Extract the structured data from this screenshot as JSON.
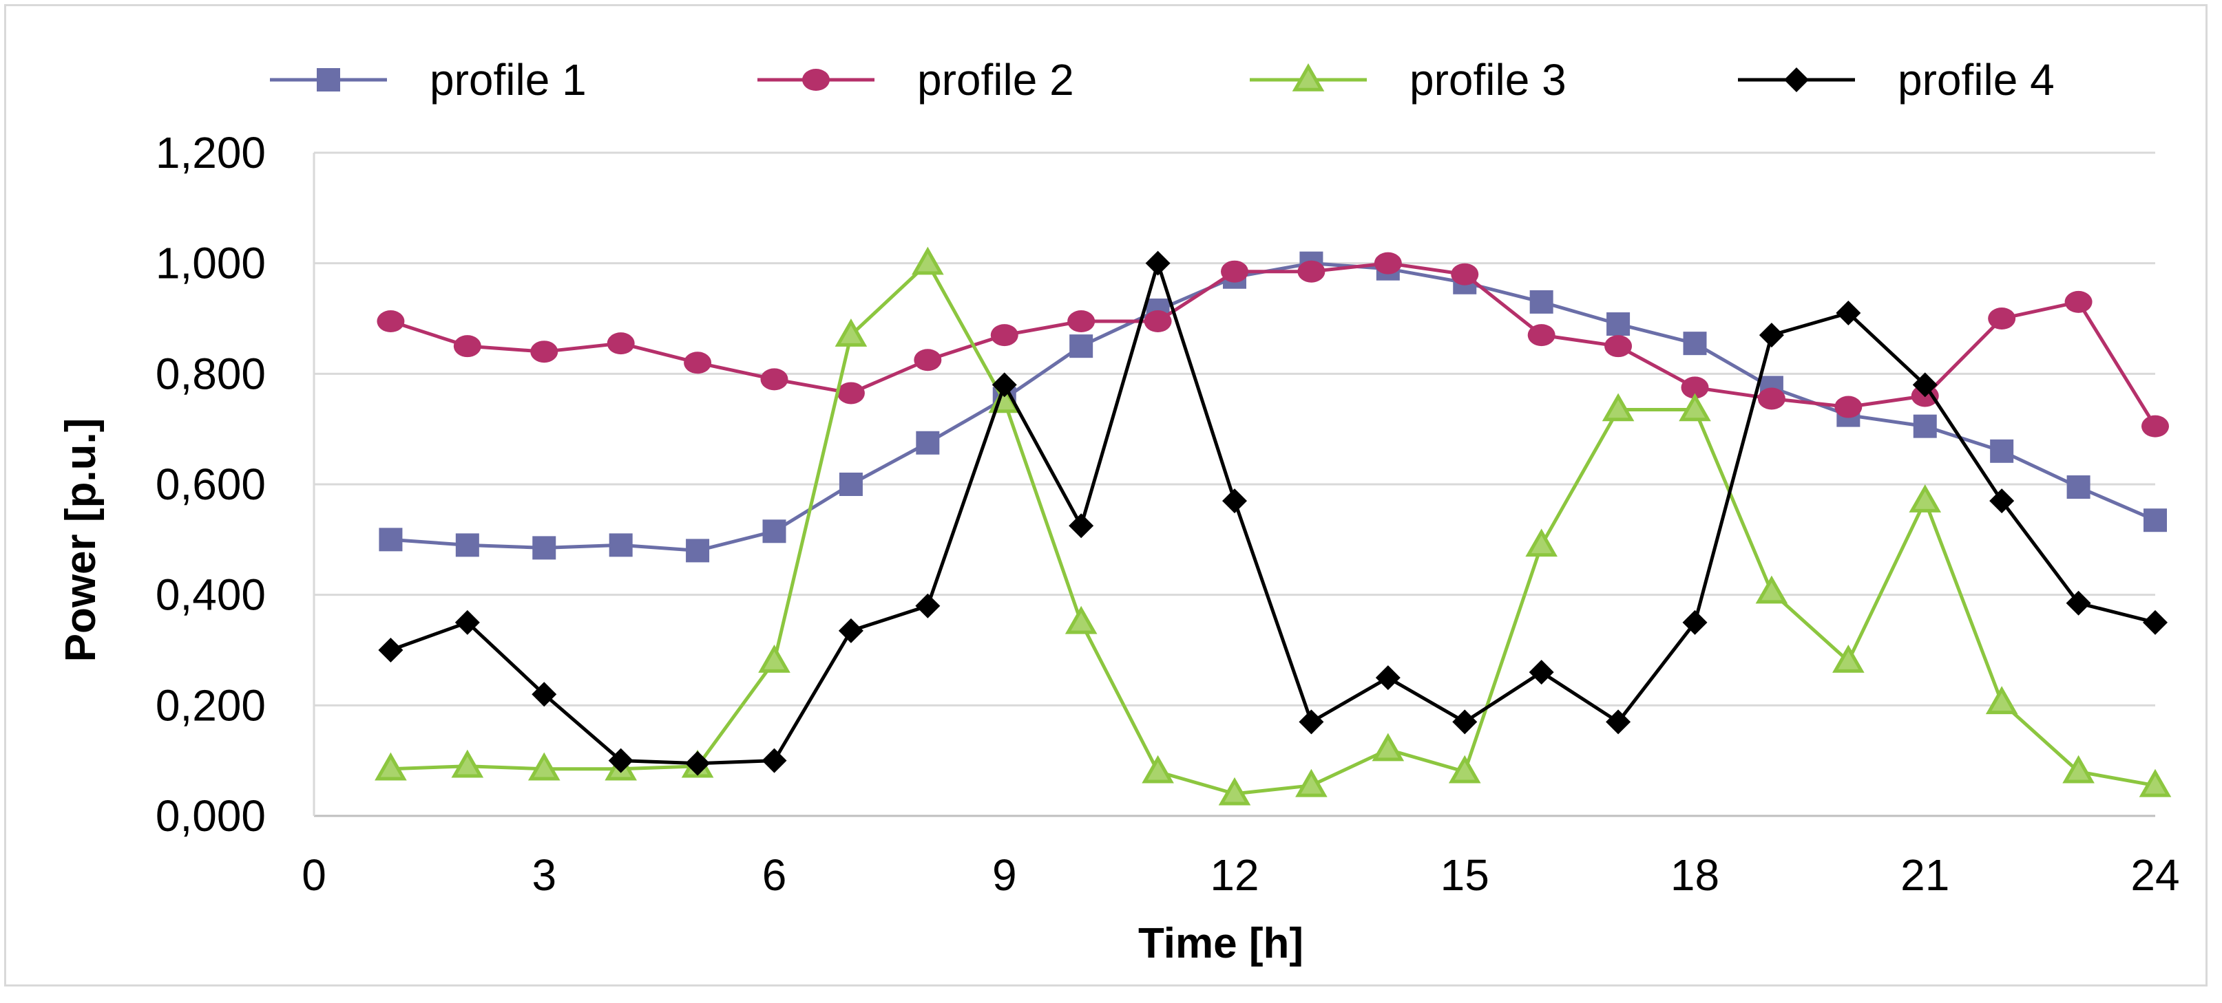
{
  "chart_data": {
    "type": "line",
    "title": "",
    "xlabel": "Time [h]",
    "ylabel": "Power [p.u.]",
    "xlim": [
      0,
      24
    ],
    "ylim": [
      0,
      1.2
    ],
    "xticks": [
      0,
      3,
      6,
      9,
      12,
      15,
      18,
      21,
      24
    ],
    "xtick_labels": [
      "0",
      "3",
      "6",
      "9",
      "12",
      "15",
      "18",
      "21",
      "24"
    ],
    "yticks": [
      0,
      0.2,
      0.4,
      0.6,
      0.8,
      1.0,
      1.2
    ],
    "ytick_labels": [
      "0,000",
      "0,200",
      "0,400",
      "0,600",
      "0,800",
      "1,000",
      "1,200"
    ],
    "grid": true,
    "legend_position": "top",
    "x": [
      1,
      2,
      3,
      4,
      5,
      6,
      7,
      8,
      9,
      10,
      11,
      12,
      13,
      14,
      15,
      16,
      17,
      18,
      19,
      20,
      21,
      22,
      23,
      24
    ],
    "series": [
      {
        "name": "profile 1",
        "color": "#6a6ea8",
        "marker": "square",
        "values": [
          0.5,
          0.49,
          0.485,
          0.49,
          0.48,
          0.515,
          0.6,
          0.675,
          0.755,
          0.85,
          0.915,
          0.975,
          1.0,
          0.99,
          0.965,
          0.93,
          0.89,
          0.855,
          0.775,
          0.725,
          0.705,
          0.66,
          0.595,
          0.535
        ]
      },
      {
        "name": "profile 2",
        "color": "#b5306a",
        "marker": "circle",
        "values": [
          0.895,
          0.85,
          0.84,
          0.855,
          0.82,
          0.79,
          0.765,
          0.825,
          0.87,
          0.895,
          0.895,
          0.985,
          0.985,
          1.0,
          0.98,
          0.87,
          0.85,
          0.775,
          0.755,
          0.74,
          0.76,
          0.9,
          0.93,
          0.705
        ]
      },
      {
        "name": "profile 3",
        "color": "#8cc63f",
        "marker": "triangle",
        "values": [
          0.085,
          0.09,
          0.085,
          0.085,
          0.09,
          0.28,
          0.87,
          1.0,
          0.75,
          0.35,
          0.08,
          0.04,
          0.055,
          0.12,
          0.08,
          0.49,
          0.735,
          0.735,
          0.405,
          0.28,
          0.57,
          0.205,
          0.08,
          0.055
        ]
      },
      {
        "name": "profile 4",
        "color": "#000000",
        "marker": "diamond",
        "values": [
          0.3,
          0.35,
          0.22,
          0.1,
          0.095,
          0.1,
          0.335,
          0.38,
          0.78,
          0.525,
          1.0,
          0.57,
          0.17,
          0.25,
          0.17,
          0.26,
          0.17,
          0.35,
          0.87,
          0.91,
          0.78,
          0.57,
          0.385,
          0.35
        ]
      }
    ]
  }
}
